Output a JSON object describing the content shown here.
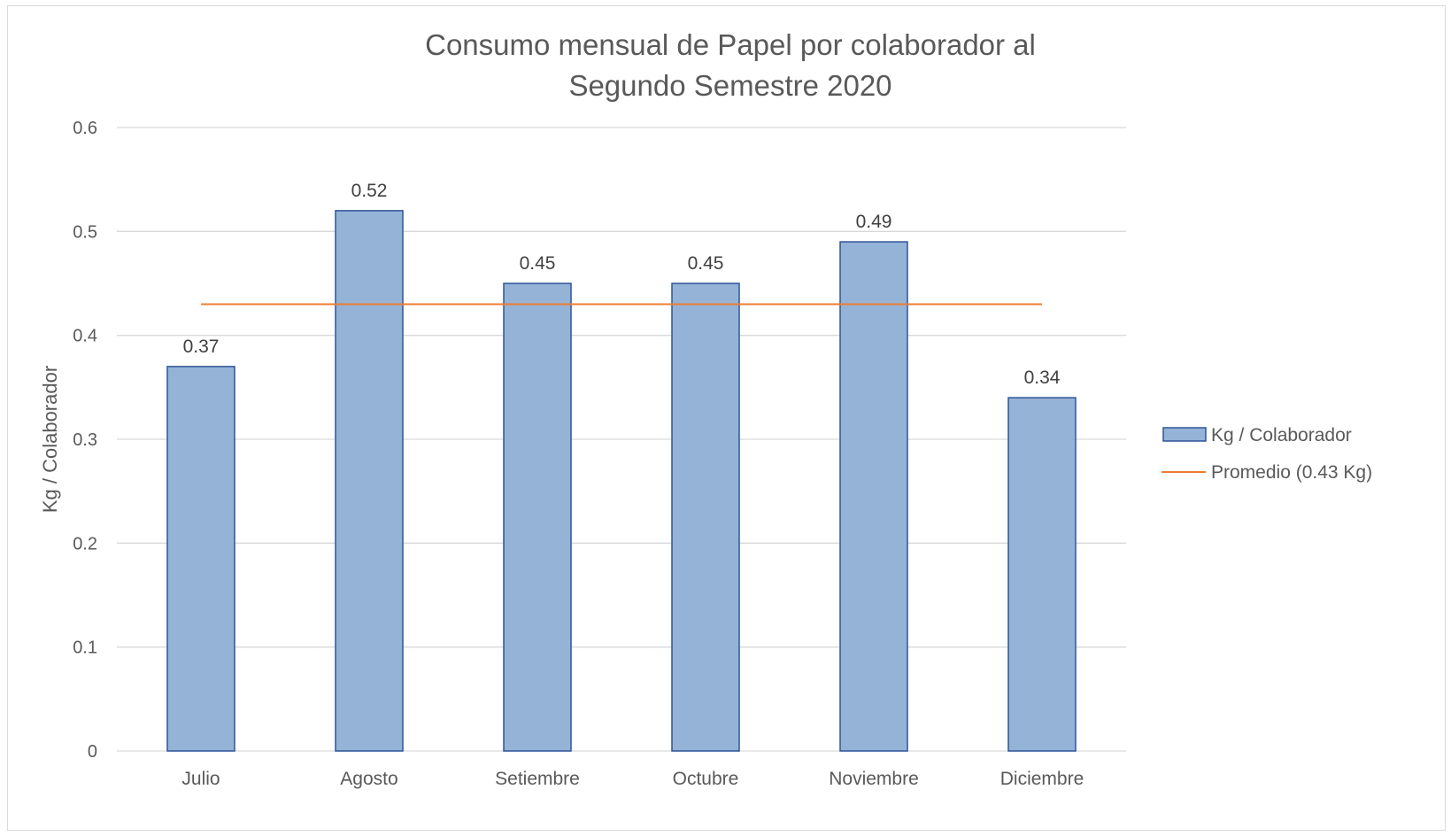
{
  "chart_data": {
    "type": "bar",
    "title_lines": [
      "Consumo mensual de Papel por colaborador al",
      "Segundo Semestre 2020"
    ],
    "ylabel": "Kg / Colaborador",
    "xlabel": "",
    "categories": [
      "Julio",
      "Agosto",
      "Setiembre",
      "Octubre",
      "Noviembre",
      "Diciembre"
    ],
    "series": [
      {
        "name": "Kg / Colaborador",
        "type": "bar",
        "color": "#95b3d7",
        "stroke": "#2f5597",
        "values": [
          0.37,
          0.52,
          0.45,
          0.45,
          0.49,
          0.34
        ],
        "labels": [
          "0.37",
          "0.52",
          "0.45",
          "0.45",
          "0.49",
          "0.34"
        ]
      },
      {
        "name": "Promedio (0.43 Kg)",
        "type": "line",
        "color": "#ed7d31",
        "value": 0.43
      }
    ],
    "ylim": [
      0,
      0.6
    ],
    "yticks": [
      0,
      0.1,
      0.2,
      0.3,
      0.4,
      0.5,
      0.6
    ],
    "ytick_labels": [
      "0",
      "0.1",
      "0.2",
      "0.3",
      "0.4",
      "0.5",
      "0.6"
    ],
    "grid": true,
    "legend_position": "right"
  }
}
